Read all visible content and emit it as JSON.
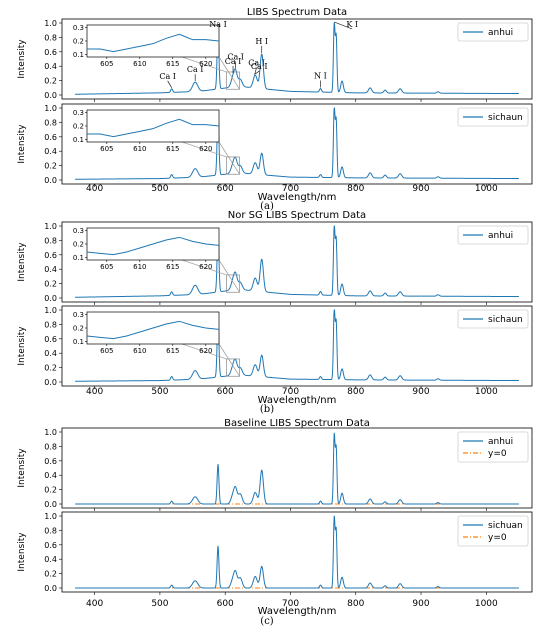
{
  "figure": {
    "panels": [
      {
        "id": "a",
        "title": "LIBS Spectrum Data",
        "caption": "(a)",
        "xlabel": "Wavelength/nm",
        "xlim": [
          350,
          1070
        ],
        "xticks": [
          400,
          500,
          600,
          700,
          800,
          900,
          1000
        ],
        "subplots": [
          {
            "ylabel": "Intensity",
            "ylim": [
              0,
              1.0
            ],
            "yticks": [
              "0.0",
              "0.2",
              "0.4",
              "0.6",
              "0.8",
              "1.0"
            ],
            "legend": [
              {
                "label": "anhui",
                "style": "solid",
                "color": "#1f77b4"
              }
            ],
            "profile": "raw_anhui",
            "inset": {
              "xticks": [
                "605",
                "610",
                "615",
                "620"
              ],
              "yticks": [
                "0.1",
                "0.2",
                "0.3"
              ],
              "xrange": [
                602,
                622
              ]
            },
            "annotations": [
              {
                "text": "Ca I",
                "x": 518
              },
              {
                "text": "Ca I",
                "x": 554
              },
              {
                "text": "Na I",
                "x": 589
              },
              {
                "text": "Ca I",
                "x": 612
              },
              {
                "text": "Ca I",
                "x": 616
              },
              {
                "text": "Ca I",
                "x": 645
              },
              {
                "text": "Ca I",
                "x": 646
              },
              {
                "text": "H I",
                "x": 656
              },
              {
                "text": "N I",
                "x": 746
              },
              {
                "text": "K I",
                "x": 767
              }
            ]
          },
          {
            "ylabel": "Intensity",
            "ylim": [
              0,
              1.0
            ],
            "yticks": [
              "0.0",
              "0.2",
              "0.4",
              "0.6",
              "0.8",
              "1.0"
            ],
            "legend": [
              {
                "label": "sichaun",
                "style": "solid",
                "color": "#1f77b4"
              }
            ],
            "profile": "raw_sichuan",
            "inset": {
              "xticks": [
                "605",
                "610",
                "615",
                "620"
              ],
              "yticks": [
                "0.1",
                "0.2",
                "0.3"
              ],
              "xrange": [
                602,
                622
              ]
            },
            "annotations": []
          }
        ]
      },
      {
        "id": "b",
        "title": "Nor SG LIBS Spectrum Data",
        "caption": "(b)",
        "xlabel": "Wavelength/nm",
        "xlim": [
          350,
          1070
        ],
        "xticks": [
          400,
          500,
          600,
          700,
          800,
          900,
          1000
        ],
        "subplots": [
          {
            "ylabel": "Intensity",
            "ylim": [
              0,
              1.0
            ],
            "yticks": [
              "0.0",
              "0.2",
              "0.4",
              "0.6",
              "0.8",
              "1.0"
            ],
            "legend": [
              {
                "label": "anhui",
                "style": "solid",
                "color": "#1f77b4"
              }
            ],
            "profile": "nor_anhui",
            "inset": {
              "xticks": [
                "605",
                "610",
                "615",
                "620"
              ],
              "yticks": [
                "0.1",
                "0.2",
                "0.3"
              ],
              "xrange": [
                602,
                622
              ]
            },
            "annotations": []
          },
          {
            "ylabel": "Intensity",
            "ylim": [
              0,
              1.0
            ],
            "yticks": [
              "0.0",
              "0.2",
              "0.4",
              "0.6",
              "0.8",
              "1.0"
            ],
            "legend": [
              {
                "label": "sichaun",
                "style": "solid",
                "color": "#1f77b4"
              }
            ],
            "profile": "nor_sichuan",
            "inset": {
              "xticks": [
                "605",
                "610",
                "615",
                "620"
              ],
              "yticks": [
                "0.1",
                "0.2",
                "0.3"
              ],
              "xrange": [
                602,
                622
              ]
            },
            "annotations": []
          }
        ]
      },
      {
        "id": "c",
        "title": "Baseline LIBS Spectrum Data",
        "caption": "(c)",
        "xlabel": "Wavelength/nm",
        "xlim": [
          350,
          1070
        ],
        "xticks": [
          400,
          500,
          600,
          700,
          800,
          900,
          1000
        ],
        "subplots": [
          {
            "ylabel": "Intensity",
            "ylim": [
              0,
              1.0
            ],
            "yticks": [
              "0.0",
              "0.2",
              "0.4",
              "0.6",
              "0.8",
              "1.0"
            ],
            "legend": [
              {
                "label": "anhui",
                "style": "solid",
                "color": "#1f77b4"
              },
              {
                "label": "y=0",
                "style": "dashdot",
                "color": "#ff7f0e"
              }
            ],
            "profile": "base_anhui",
            "zero_line": true,
            "inset": null,
            "annotations": []
          },
          {
            "ylabel": "Intensity",
            "ylim": [
              0,
              1.0
            ],
            "yticks": [
              "0.0",
              "0.2",
              "0.4",
              "0.6",
              "0.8",
              "1.0"
            ],
            "legend": [
              {
                "label": "sichuan",
                "style": "solid",
                "color": "#1f77b4"
              },
              {
                "label": "y=0",
                "style": "dashdot",
                "color": "#ff7f0e"
              }
            ],
            "profile": "base_sichuan",
            "zero_line": true,
            "inset": null,
            "annotations": []
          }
        ]
      }
    ]
  },
  "chart_data": {
    "type": "line",
    "x_range": [
      370,
      1050
    ],
    "profiles": {
      "raw_anhui": {
        "baseline": [
          [
            370,
            0.01
          ],
          [
            500,
            0.03
          ],
          [
            560,
            0.05
          ],
          [
            620,
            0.12
          ],
          [
            700,
            0.05
          ],
          [
            800,
            0.03
          ],
          [
            1050,
            0.02
          ]
        ],
        "peaks": [
          [
            518,
            0.05,
            1.5
          ],
          [
            554,
            0.13,
            4
          ],
          [
            589,
            0.82,
            1.4
          ],
          [
            612,
            0.13,
            3
          ],
          [
            616,
            0.18,
            2.5
          ],
          [
            623,
            0.1,
            3
          ],
          [
            646,
            0.18,
            3
          ],
          [
            656,
            0.48,
            2.5
          ],
          [
            746,
            0.05,
            1.5
          ],
          [
            767,
            0.95,
            1.2
          ],
          [
            770,
            0.78,
            1.2
          ],
          [
            779,
            0.16,
            2
          ],
          [
            822,
            0.07,
            2.5
          ],
          [
            845,
            0.04,
            2
          ],
          [
            868,
            0.06,
            2.5
          ],
          [
            926,
            0.02,
            2
          ]
        ]
      },
      "raw_sichuan": {
        "baseline": [
          [
            370,
            0.01
          ],
          [
            500,
            0.02
          ],
          [
            560,
            0.04
          ],
          [
            620,
            0.1
          ],
          [
            700,
            0.04
          ],
          [
            800,
            0.03
          ],
          [
            1050,
            0.02
          ]
        ],
        "peaks": [
          [
            518,
            0.05,
            1.5
          ],
          [
            554,
            0.12,
            4
          ],
          [
            589,
            0.85,
            1.4
          ],
          [
            612,
            0.12,
            3
          ],
          [
            616,
            0.16,
            2.5
          ],
          [
            623,
            0.1,
            3
          ],
          [
            646,
            0.16,
            3
          ],
          [
            656,
            0.3,
            2.5
          ],
          [
            746,
            0.04,
            1.5
          ],
          [
            767,
            0.97,
            1.2
          ],
          [
            770,
            0.8,
            1.2
          ],
          [
            779,
            0.15,
            2
          ],
          [
            822,
            0.07,
            2.5
          ],
          [
            845,
            0.04,
            2
          ],
          [
            868,
            0.06,
            2.5
          ],
          [
            926,
            0.02,
            2
          ]
        ]
      },
      "nor_anhui": {
        "baseline": [
          [
            370,
            0.01
          ],
          [
            500,
            0.03
          ],
          [
            560,
            0.05
          ],
          [
            620,
            0.12
          ],
          [
            700,
            0.05
          ],
          [
            800,
            0.03
          ],
          [
            1050,
            0.02
          ]
        ],
        "peaks": [
          [
            518,
            0.05,
            1.5
          ],
          [
            554,
            0.13,
            4
          ],
          [
            589,
            0.82,
            1.4
          ],
          [
            612,
            0.13,
            3
          ],
          [
            616,
            0.18,
            2.5
          ],
          [
            623,
            0.1,
            3
          ],
          [
            646,
            0.18,
            3
          ],
          [
            656,
            0.45,
            2.5
          ],
          [
            746,
            0.05,
            1.5
          ],
          [
            767,
            0.95,
            1.2
          ],
          [
            770,
            0.78,
            1.2
          ],
          [
            779,
            0.16,
            2
          ],
          [
            822,
            0.07,
            2.5
          ],
          [
            845,
            0.04,
            2
          ],
          [
            868,
            0.06,
            2.5
          ],
          [
            926,
            0.02,
            2
          ]
        ]
      },
      "nor_sichuan": {
        "baseline": [
          [
            370,
            0.01
          ],
          [
            500,
            0.02
          ],
          [
            560,
            0.04
          ],
          [
            620,
            0.1
          ],
          [
            700,
            0.04
          ],
          [
            800,
            0.03
          ],
          [
            1050,
            0.02
          ]
        ],
        "peaks": [
          [
            518,
            0.05,
            1.5
          ],
          [
            554,
            0.12,
            4
          ],
          [
            589,
            0.8,
            1.4
          ],
          [
            612,
            0.12,
            3
          ],
          [
            616,
            0.16,
            2.5
          ],
          [
            623,
            0.1,
            3
          ],
          [
            646,
            0.16,
            3
          ],
          [
            656,
            0.3,
            2.5
          ],
          [
            746,
            0.04,
            1.5
          ],
          [
            767,
            0.97,
            1.2
          ],
          [
            770,
            0.8,
            1.2
          ],
          [
            779,
            0.15,
            2
          ],
          [
            822,
            0.07,
            2.5
          ],
          [
            845,
            0.04,
            2
          ],
          [
            868,
            0.06,
            2.5
          ],
          [
            926,
            0.02,
            2
          ]
        ]
      },
      "base_anhui": {
        "baseline": [
          [
            370,
            0.0
          ],
          [
            1050,
            0.0
          ]
        ],
        "peaks": [
          [
            518,
            0.04,
            1.5
          ],
          [
            554,
            0.1,
            4
          ],
          [
            589,
            0.55,
            1.4
          ],
          [
            612,
            0.12,
            3
          ],
          [
            616,
            0.18,
            2.5
          ],
          [
            623,
            0.14,
            3
          ],
          [
            646,
            0.16,
            3
          ],
          [
            656,
            0.47,
            2.5
          ],
          [
            746,
            0.04,
            1.5
          ],
          [
            767,
            0.95,
            1.2
          ],
          [
            770,
            0.78,
            1.2
          ],
          [
            779,
            0.15,
            2
          ],
          [
            822,
            0.07,
            2.5
          ],
          [
            845,
            0.03,
            2
          ],
          [
            868,
            0.06,
            2.5
          ],
          [
            926,
            0.02,
            2
          ]
        ]
      },
      "base_sichuan": {
        "baseline": [
          [
            370,
            0.0
          ],
          [
            1050,
            0.0
          ]
        ],
        "peaks": [
          [
            518,
            0.04,
            1.5
          ],
          [
            554,
            0.1,
            4
          ],
          [
            589,
            0.58,
            1.4
          ],
          [
            612,
            0.12,
            3
          ],
          [
            616,
            0.18,
            2.5
          ],
          [
            623,
            0.14,
            3
          ],
          [
            646,
            0.16,
            3
          ],
          [
            656,
            0.3,
            2.5
          ],
          [
            746,
            0.04,
            1.5
          ],
          [
            767,
            0.97,
            1.2
          ],
          [
            770,
            0.8,
            1.2
          ],
          [
            779,
            0.15,
            2
          ],
          [
            822,
            0.07,
            2.5
          ],
          [
            845,
            0.03,
            2
          ],
          [
            868,
            0.06,
            2.5
          ],
          [
            926,
            0.02,
            2
          ]
        ]
      }
    },
    "inset_profiles": {
      "raw": [
        [
          602,
          0.14
        ],
        [
          604,
          0.14
        ],
        [
          606,
          0.12
        ],
        [
          608,
          0.14
        ],
        [
          610,
          0.16
        ],
        [
          612,
          0.18
        ],
        [
          614,
          0.22
        ],
        [
          616,
          0.25
        ],
        [
          617,
          0.23
        ],
        [
          618,
          0.21
        ],
        [
          620,
          0.21
        ],
        [
          622,
          0.2
        ]
      ],
      "nor": [
        [
          602,
          0.14
        ],
        [
          604,
          0.13
        ],
        [
          606,
          0.12
        ],
        [
          608,
          0.14
        ],
        [
          610,
          0.17
        ],
        [
          612,
          0.2
        ],
        [
          614,
          0.23
        ],
        [
          616,
          0.25
        ],
        [
          618,
          0.22
        ],
        [
          620,
          0.2
        ],
        [
          622,
          0.19
        ]
      ]
    }
  }
}
